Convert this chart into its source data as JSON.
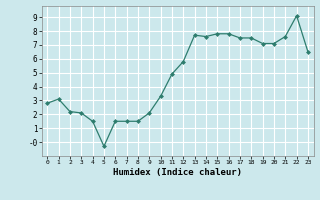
{
  "x": [
    0,
    1,
    2,
    3,
    4,
    5,
    6,
    7,
    8,
    9,
    10,
    11,
    12,
    13,
    14,
    15,
    16,
    17,
    18,
    19,
    20,
    21,
    22,
    23
  ],
  "y": [
    2.8,
    3.1,
    2.2,
    2.1,
    1.5,
    -0.3,
    1.5,
    1.5,
    1.5,
    2.1,
    3.3,
    4.9,
    5.8,
    7.7,
    7.6,
    7.8,
    7.8,
    7.5,
    7.5,
    7.1,
    7.1,
    7.6,
    9.1,
    6.5
  ],
  "line_color": "#2e7d6e",
  "marker": "D",
  "marker_size": 2.0,
  "bg_color": "#cce8ec",
  "grid_color": "#ffffff",
  "xlabel": "Humidex (Indice chaleur)",
  "ylim": [
    -1.0,
    9.8
  ],
  "xlim": [
    -0.5,
    23.5
  ],
  "yticks": [
    0,
    1,
    2,
    3,
    4,
    5,
    6,
    7,
    8,
    9
  ],
  "ytick_labels": [
    "-0",
    "1",
    "2",
    "3",
    "4",
    "5",
    "6",
    "7",
    "8",
    "9"
  ],
  "xticks": [
    0,
    1,
    2,
    3,
    4,
    5,
    6,
    7,
    8,
    9,
    10,
    11,
    12,
    13,
    14,
    15,
    16,
    17,
    18,
    19,
    20,
    21,
    22,
    23
  ]
}
